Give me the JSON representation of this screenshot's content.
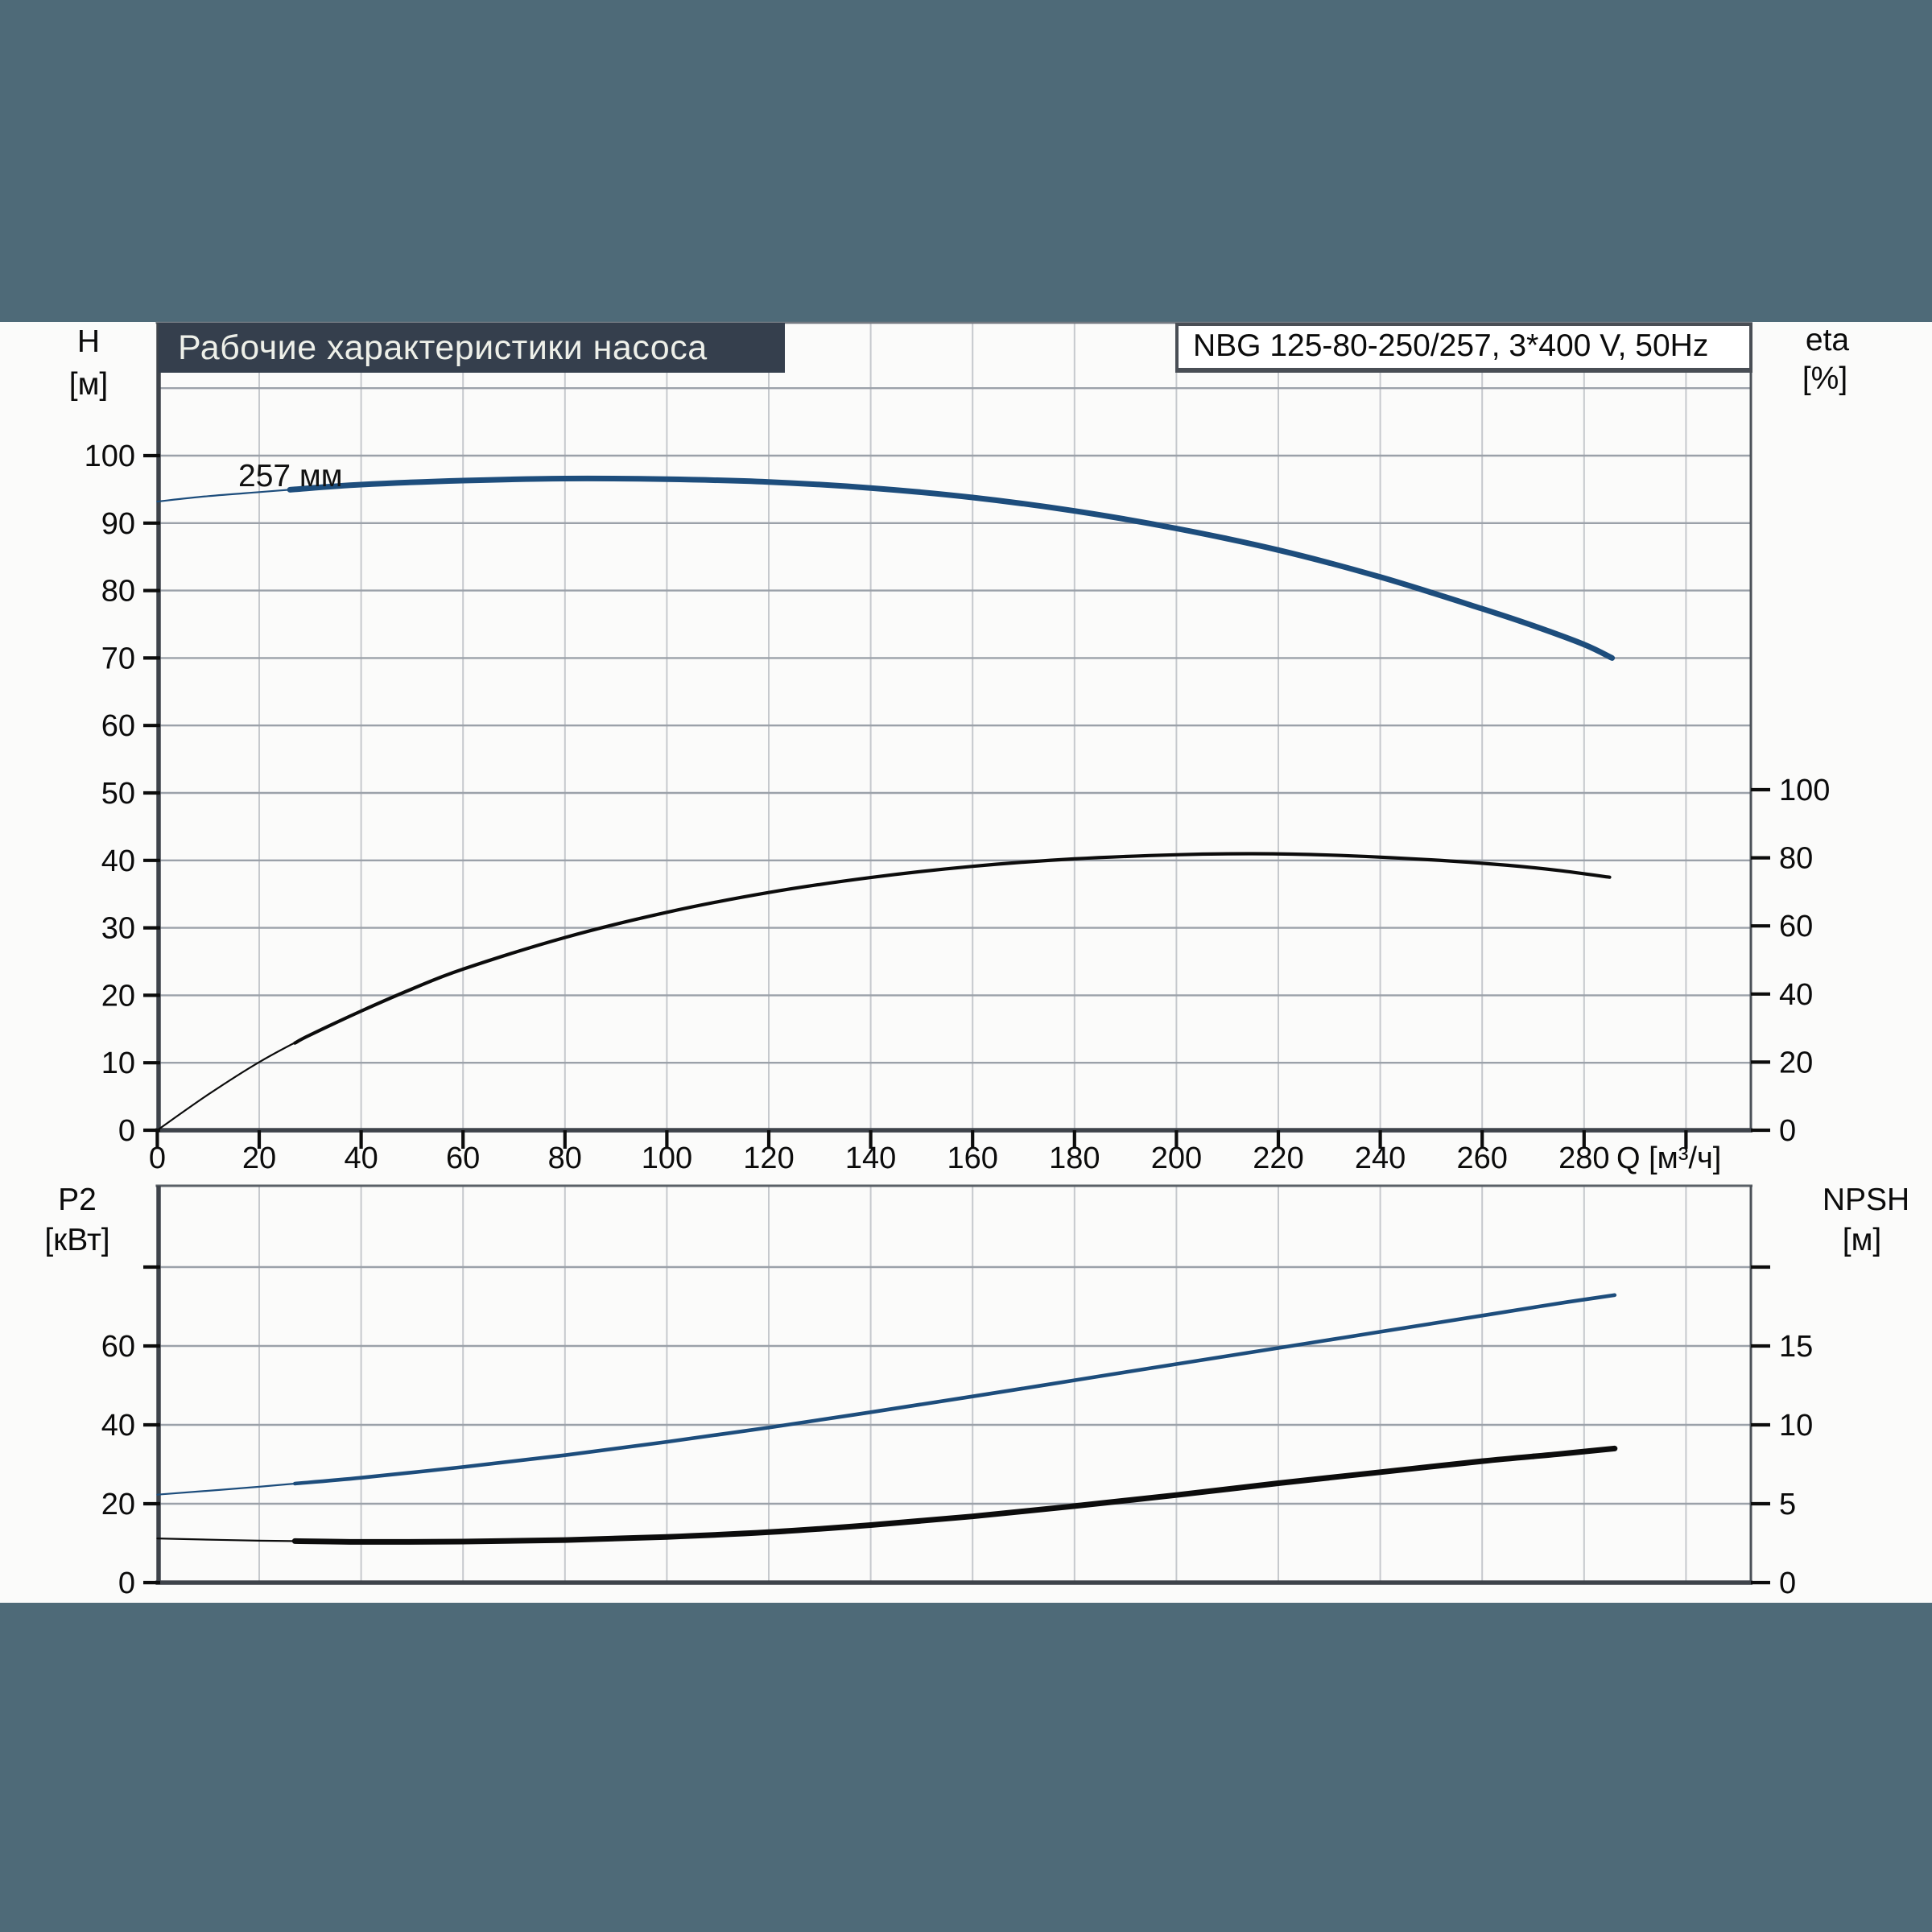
{
  "header": {
    "title": "Рабочие характеристики насоса",
    "pump_type": "NBG 125-80-250/257, 3*400 V, 50Hz"
  },
  "colors": {
    "band_teal": "#4e6a78",
    "title_bar": "#353f4d",
    "curve_blue": "#1d4d7c",
    "curve_black": "#0c0c0c",
    "grid_horizontal": "#9ba1a9",
    "grid_vertical": "#c6c9cd",
    "axis_dark": "#3e434a"
  },
  "top_chart": {
    "left_axis": {
      "name": "H",
      "unit": "[м]",
      "tick_labels": [
        0,
        10,
        20,
        30,
        40,
        50,
        60,
        70,
        80,
        90,
        100
      ]
    },
    "right_axis": {
      "name": "eta",
      "unit": "[%]",
      "tick_labels": [
        0,
        20,
        40,
        60,
        80,
        100
      ]
    },
    "x_axis": {
      "tick_labels": [
        0,
        20,
        40,
        60,
        80,
        100,
        120,
        140,
        160,
        180,
        200,
        220,
        240,
        260,
        280
      ],
      "unit_label": "Q [м³/ч]"
    },
    "curve_label": "257 мм"
  },
  "bottom_chart": {
    "left_axis": {
      "name": "P2",
      "unit": "[кВт]",
      "tick_labels": [
        0,
        20,
        40,
        60
      ]
    },
    "right_axis": {
      "name": "NPSH",
      "unit": "[м]",
      "tick_labels": [
        0,
        5,
        10,
        15
      ]
    }
  },
  "chart_data": [
    {
      "id": "head_curve",
      "type": "line",
      "chart": "top",
      "yscale": "H",
      "name": "257 мм",
      "color": "#1d4d7c",
      "xlabel": "Q [м³/ч]",
      "ylabel": "H [м]",
      "xlim": [
        0,
        313
      ],
      "ylim": [
        0,
        119
      ],
      "thick_from_x": 27,
      "x": [
        0,
        10,
        20,
        27,
        40,
        60,
        80,
        100,
        120,
        140,
        160,
        180,
        200,
        220,
        240,
        260,
        270,
        280,
        285.5
      ],
      "y": [
        93.2,
        94.0,
        94.6,
        95.0,
        95.7,
        96.3,
        96.6,
        96.5,
        96.1,
        95.2,
        93.8,
        91.8,
        89.2,
        86.0,
        82.0,
        77.3,
        74.8,
        72.0,
        70.0
      ]
    },
    {
      "id": "efficiency_curve",
      "type": "line",
      "chart": "top",
      "yscale": "eta",
      "name": "eta",
      "color": "#0c0c0c",
      "xlabel": "Q [м³/ч]",
      "ylabel": "eta [%]",
      "xlim": [
        0,
        313
      ],
      "ylim": [
        0,
        100
      ],
      "thick_from_x": 27,
      "x": [
        0,
        10,
        20,
        30,
        40,
        50,
        60,
        80,
        100,
        120,
        140,
        160,
        180,
        200,
        215,
        230,
        250,
        265,
        275,
        285
      ],
      "y": [
        0,
        10.5,
        20,
        28,
        35,
        41.5,
        47.3,
        56.6,
        64,
        69.8,
        74.2,
        77.5,
        79.7,
        80.9,
        81.2,
        80.8,
        79.4,
        77.8,
        76.3,
        74.3
      ]
    },
    {
      "id": "p2_curve",
      "type": "line",
      "chart": "bottom",
      "yscale": "P2",
      "name": "P2",
      "color": "#1d4d7c",
      "xlabel": "Q [м³/ч]",
      "ylabel": "P2 [кВт]",
      "xlim": [
        0,
        313
      ],
      "ylim": [
        0,
        100
      ],
      "thick_from_x": 27,
      "x": [
        0,
        20,
        40,
        60,
        80,
        100,
        120,
        140,
        160,
        180,
        200,
        220,
        240,
        260,
        275,
        286
      ],
      "y": [
        22.3,
        24.3,
        26.6,
        29.3,
        32.3,
        35.7,
        39.3,
        43.2,
        47.2,
        51.3,
        55.4,
        59.5,
        63.6,
        67.7,
        70.8,
        72.9
      ]
    },
    {
      "id": "npsh_curve",
      "type": "line",
      "chart": "bottom",
      "yscale": "NPSH",
      "name": "NPSH",
      "color": "#0c0c0c",
      "xlabel": "Q [м³/ч]",
      "ylabel": "NPSH [м]",
      "xlim": [
        0,
        313
      ],
      "ylim": [
        0,
        25
      ],
      "thick_from_x": 27,
      "x": [
        0,
        20,
        40,
        60,
        80,
        100,
        120,
        140,
        160,
        180,
        200,
        220,
        240,
        260,
        275,
        286
      ],
      "y": [
        2.8,
        2.66,
        2.58,
        2.6,
        2.7,
        2.9,
        3.2,
        3.65,
        4.2,
        4.85,
        5.55,
        6.3,
        7.0,
        7.7,
        8.15,
        8.5
      ]
    }
  ]
}
